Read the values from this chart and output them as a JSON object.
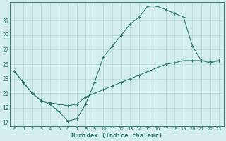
{
  "xlabel": "Humidex (Indice chaleur)",
  "bg_color": "#d4eef0",
  "grid_color": "#b8dde0",
  "line_color": "#2d7a6e",
  "xlim": [
    -0.5,
    23.5
  ],
  "ylim": [
    16.5,
    33.5
  ],
  "yticks": [
    17,
    19,
    21,
    23,
    25,
    27,
    29,
    31
  ],
  "xticks": [
    0,
    1,
    2,
    3,
    4,
    5,
    6,
    7,
    8,
    9,
    10,
    11,
    12,
    13,
    14,
    15,
    16,
    17,
    18,
    19,
    20,
    21,
    22,
    23
  ],
  "line1_x": [
    0,
    1,
    2,
    3,
    4,
    5,
    6,
    7,
    8,
    9,
    10,
    11,
    12,
    13,
    14,
    15,
    16,
    17,
    18,
    19,
    20,
    21,
    22,
    23
  ],
  "line1_y": [
    24.0,
    22.5,
    21.0,
    20.0,
    19.5,
    18.5,
    17.2,
    17.5,
    19.5,
    22.5,
    26.0,
    27.5,
    29.0,
    30.5,
    31.5,
    33.0,
    33.0,
    32.5,
    32.0,
    31.5,
    27.5,
    25.5,
    25.2,
    25.5
  ],
  "line2_x": [
    0,
    1,
    2,
    3,
    4,
    5,
    6,
    7,
    8,
    9,
    10,
    11,
    12,
    13,
    14,
    15,
    16,
    17,
    18,
    19,
    20,
    21,
    22,
    23
  ],
  "line2_y": [
    24.0,
    22.5,
    21.0,
    20.0,
    19.7,
    19.5,
    19.3,
    19.5,
    20.5,
    21.0,
    21.5,
    22.0,
    22.5,
    23.0,
    23.5,
    24.0,
    24.5,
    25.0,
    25.2,
    25.5,
    25.5,
    25.5,
    25.4,
    25.5
  ]
}
